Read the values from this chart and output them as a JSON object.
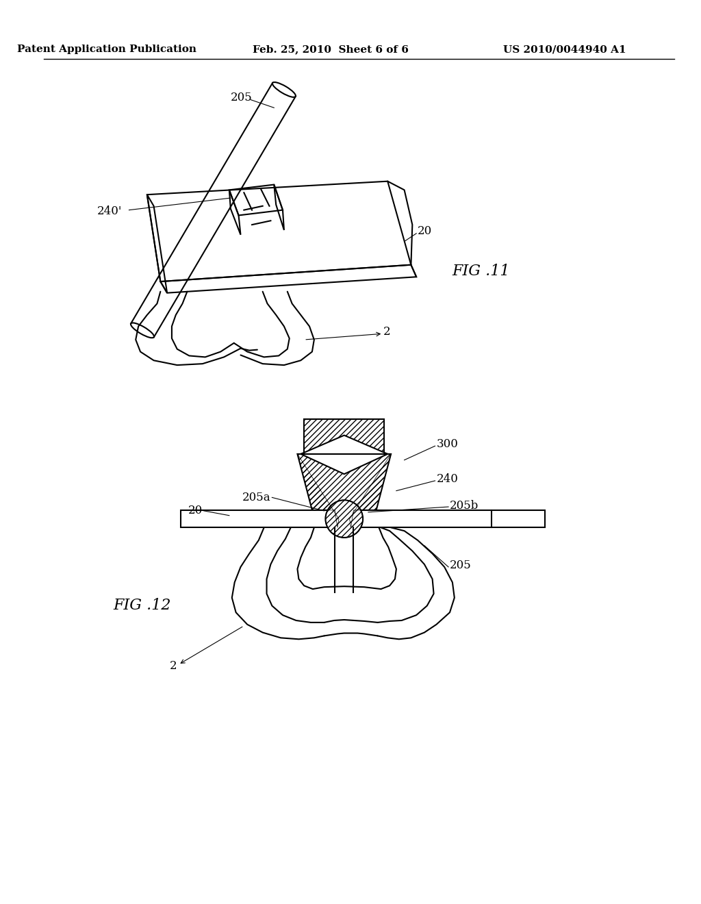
{
  "background_color": "#ffffff",
  "header_left": "Patent Application Publication",
  "header_center": "Feb. 25, 2010  Sheet 6 of 6",
  "header_right": "US 2010/0044940 A1",
  "header_fontsize": 11,
  "fig11_label": "FIG .11",
  "fig12_label": "FIG .12",
  "label_fontsize": 14,
  "annotation_fontsize": 12,
  "line_color": "#000000",
  "line_width": 1.5
}
